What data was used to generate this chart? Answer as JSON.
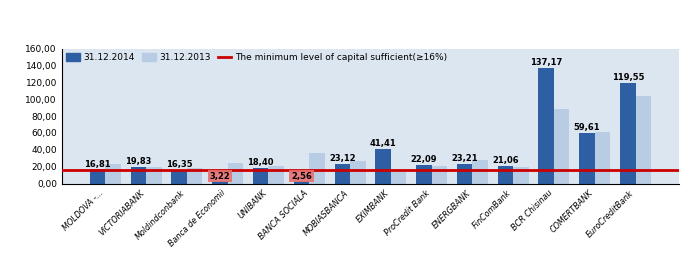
{
  "categories": [
    "MOLDOVA -...",
    "VICTORIABANK",
    "Moldindconbank",
    "Banca de Economii",
    "UNIBANK",
    "BANCA SOCIALA",
    "MOBIASBANCA",
    "EXIMBANK",
    "ProCredit Bank",
    "ENERGBANK",
    "FinComBank",
    "BCR Chisinau",
    "COMERTBANK",
    "EuroCreditBank"
  ],
  "values_2014": [
    16.81,
    19.83,
    16.35,
    3.22,
    18.4,
    2.56,
    23.12,
    41.41,
    22.09,
    23.21,
    21.06,
    137.17,
    59.61,
    119.55
  ],
  "values_2013": [
    23.5,
    20.0,
    19.0,
    24.5,
    21.0,
    36.0,
    27.0,
    13.5,
    21.0,
    27.5,
    20.0,
    88.0,
    61.0,
    104.0
  ],
  "color_2014": "#2E5FA3",
  "color_2013": "#B8CCE4",
  "line_color": "#CC0000",
  "line_value": 16.0,
  "legend_2014": "31.12.2014",
  "legend_2013": "31.12.2013",
  "legend_line": "The minimum level of capital sufficient(≥16%)",
  "ylim": [
    0,
    160
  ],
  "yticks": [
    0,
    20,
    40,
    60,
    80,
    100,
    120,
    140,
    160
  ],
  "ytick_labels": [
    "0,00",
    "20,00",
    "40,00",
    "60,00",
    "80,00",
    "100,00",
    "120,00",
    "140,00",
    "160,00"
  ],
  "background_color": "#DCE6F1",
  "bar_label_fontsize": 6.0,
  "red_box_color": "#E87070",
  "red_indices": [
    3,
    5
  ]
}
